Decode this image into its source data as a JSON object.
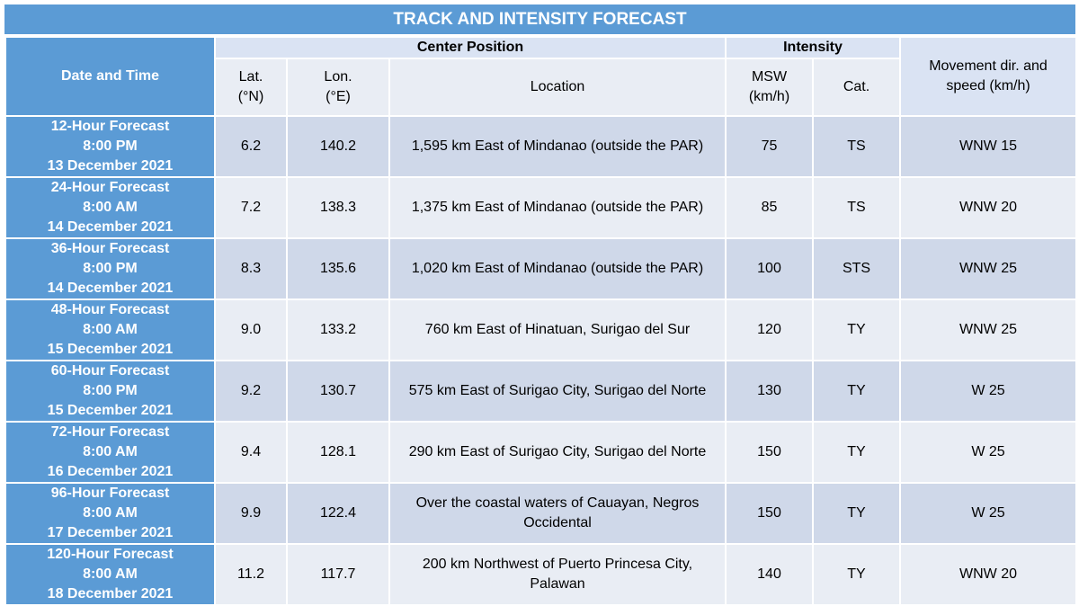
{
  "title": "TRACK AND INTENSITY FORECAST",
  "table": {
    "group_headers": {
      "date": "Date and Time",
      "center": "Center Position",
      "intensity": "Intensity",
      "movement": "Movement dir. and speed (km/h)"
    },
    "column_headers": {
      "lat": "Lat. (°N)",
      "lon": "Lon. (°E)",
      "location": "Location",
      "msw": "MSW (km/h)",
      "cat": "Cat."
    },
    "rows": [
      {
        "date": [
          "12-Hour Forecast",
          "8:00 PM",
          "13 December 2021"
        ],
        "lat": "6.2",
        "lon": "140.2",
        "location": "1,595 km East of Mindanao (outside the PAR)",
        "msw": "75",
        "cat": "TS",
        "movement": "WNW 15"
      },
      {
        "date": [
          "24-Hour Forecast",
          "8:00 AM",
          "14 December 2021"
        ],
        "lat": "7.2",
        "lon": "138.3",
        "location": "1,375 km East of Mindanao (outside the PAR)",
        "msw": "85",
        "cat": "TS",
        "movement": "WNW 20"
      },
      {
        "date": [
          "36-Hour Forecast",
          "8:00 PM",
          "14 December 2021"
        ],
        "lat": "8.3",
        "lon": "135.6",
        "location": "1,020 km East of Mindanao (outside the PAR)",
        "msw": "100",
        "cat": "STS",
        "movement": "WNW 25"
      },
      {
        "date": [
          "48-Hour Forecast",
          "8:00 AM",
          "15 December 2021"
        ],
        "lat": "9.0",
        "lon": "133.2",
        "location": "760 km East of Hinatuan, Surigao del Sur",
        "msw": "120",
        "cat": "TY",
        "movement": "WNW 25"
      },
      {
        "date": [
          "60-Hour Forecast",
          "8:00 PM",
          "15 December 2021"
        ],
        "lat": "9.2",
        "lon": "130.7",
        "location": "575 km East of Surigao City, Surigao del Norte",
        "msw": "130",
        "cat": "TY",
        "movement": "W 25"
      },
      {
        "date": [
          "72-Hour Forecast",
          "8:00 AM",
          "16 December 2021"
        ],
        "lat": "9.4",
        "lon": "128.1",
        "location": "290 km East of Surigao City, Surigao del Norte",
        "msw": "150",
        "cat": "TY",
        "movement": "W 25"
      },
      {
        "date": [
          "96-Hour Forecast",
          "8:00 AM",
          "17 December 2021"
        ],
        "lat": "9.9",
        "lon": "122.4",
        "location": "Over the coastal waters of Cauayan, Negros Occidental",
        "msw": "150",
        "cat": "TY",
        "movement": "W 25"
      },
      {
        "date": [
          "120-Hour Forecast",
          "8:00 AM",
          "18 December 2021"
        ],
        "lat": "11.2",
        "lon": "117.7",
        "location": "200 km Northwest of Puerto Princesa City, Palawan",
        "msw": "140",
        "cat": "TY",
        "movement": "WNW 20"
      }
    ]
  }
}
